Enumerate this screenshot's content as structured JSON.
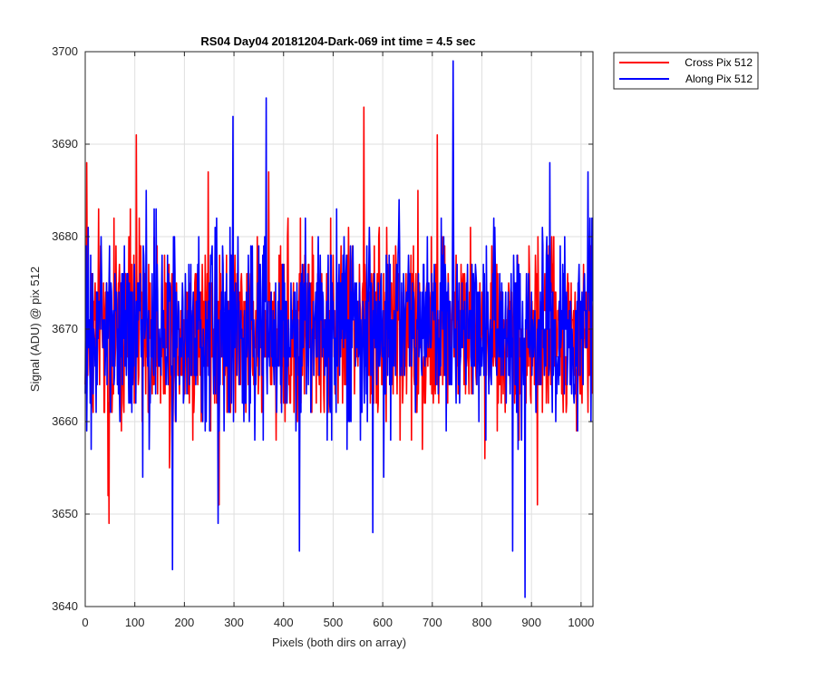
{
  "chart_data": {
    "type": "line",
    "title": "RS04 Day04 20181204-Dark-069 int time = 4.5 sec",
    "xlabel": "Pixels (both dirs on array)",
    "ylabel": "Signal (ADU) @ pix 512",
    "xlim": [
      0,
      1024
    ],
    "ylim": [
      3640,
      3700
    ],
    "xticks": [
      0,
      100,
      200,
      300,
      400,
      500,
      600,
      700,
      800,
      900,
      1000
    ],
    "yticks": [
      3640,
      3650,
      3660,
      3670,
      3680,
      3690,
      3700
    ],
    "grid": true,
    "legend_position": "outside-top-right",
    "series": [
      {
        "name": "Cross Pix 512",
        "color": "#ff0000",
        "mean": 3670,
        "points": 1024,
        "extremes": [
          [
            0,
            3664
          ],
          [
            3,
            3688
          ],
          [
            46,
            3652
          ],
          [
            48,
            3649
          ],
          [
            103,
            3691
          ],
          [
            170,
            3655
          ],
          [
            248,
            3687
          ],
          [
            270,
            3651
          ],
          [
            370,
            3687
          ],
          [
            562,
            3694
          ],
          [
            710,
            3691
          ],
          [
            912,
            3651
          ]
        ]
      },
      {
        "name": "Along Pix 512",
        "color": "#0000ff",
        "mean": 3670,
        "points": 1024,
        "extremes": [
          [
            0,
            3663
          ],
          [
            176,
            3644
          ],
          [
            268,
            3649
          ],
          [
            298,
            3693
          ],
          [
            365,
            3695
          ],
          [
            432,
            3646
          ],
          [
            580,
            3648
          ],
          [
            742,
            3699
          ],
          [
            862,
            3646
          ],
          [
            887,
            3641
          ],
          [
            1014,
            3687
          ]
        ]
      }
    ]
  }
}
